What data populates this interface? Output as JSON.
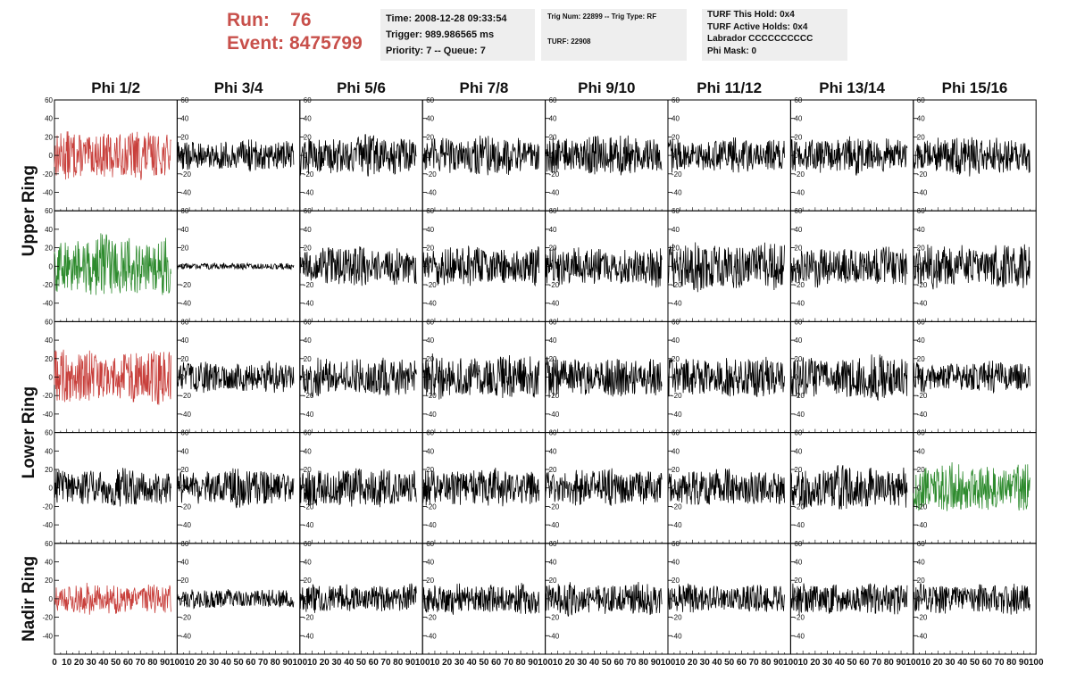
{
  "header": {
    "run_label": "Run:",
    "run_value": "76",
    "event_label": "Event:",
    "event_value": "8475799"
  },
  "info_box_1": {
    "time": "Time: 2008-12-28 09:33:54",
    "trigger": "Trigger: 989.986565 ms",
    "priority": "Priority: 7 -- Queue: 7"
  },
  "info_box_2": {
    "trig": "Trig Num: 22899 -- Trig Type: RF",
    "turf": "TURF: 22908"
  },
  "info_box_3": {
    "this_hold": "TURF This Hold: 0x4",
    "active_holds": "TURF Active Holds: 0x4",
    "labrador": "Labrador CCCCCCCCCC",
    "phi_mask": "Phi Mask: 0"
  },
  "colors": {
    "red_trace": "#c8403c",
    "green_trace": "#2e8b2e",
    "black_trace": "#000000",
    "header_text": "#c8504b"
  },
  "chart_data": {
    "type": "line",
    "columns": [
      "Phi 1/2",
      "Phi 3/4",
      "Phi 5/6",
      "Phi 7/8",
      "Phi 9/10",
      "Phi 11/12",
      "Phi 13/14",
      "Phi 15/16"
    ],
    "row_groups": [
      "Upper Ring",
      "Lower Ring",
      "Nadir Ring"
    ],
    "panel_rows": 5,
    "ylim": [
      -60,
      60
    ],
    "xlim": [
      0,
      100
    ],
    "yticks": [
      -40,
      -20,
      0,
      20,
      40,
      60
    ],
    "xticks": [
      0,
      10,
      20,
      30,
      40,
      50,
      60,
      70,
      80,
      90,
      100
    ],
    "samples_per_trace": 260,
    "trace_x_range": [
      0,
      95
    ],
    "panels": [
      {
        "row": 0,
        "col": 0,
        "color": "red",
        "amplitude": 22
      },
      {
        "row": 0,
        "col": 1,
        "color": "black",
        "amplitude": 14
      },
      {
        "row": 0,
        "col": 2,
        "color": "black",
        "amplitude": 18
      },
      {
        "row": 0,
        "col": 3,
        "color": "black",
        "amplitude": 18
      },
      {
        "row": 0,
        "col": 4,
        "color": "black",
        "amplitude": 18
      },
      {
        "row": 0,
        "col": 5,
        "color": "black",
        "amplitude": 16
      },
      {
        "row": 0,
        "col": 6,
        "color": "black",
        "amplitude": 17
      },
      {
        "row": 0,
        "col": 7,
        "color": "black",
        "amplitude": 18
      },
      {
        "row": 1,
        "col": 0,
        "color": "green",
        "amplitude": 28
      },
      {
        "row": 1,
        "col": 1,
        "color": "black",
        "amplitude": 3
      },
      {
        "row": 1,
        "col": 2,
        "color": "black",
        "amplitude": 18
      },
      {
        "row": 1,
        "col": 3,
        "color": "black",
        "amplitude": 18
      },
      {
        "row": 1,
        "col": 4,
        "color": "black",
        "amplitude": 18
      },
      {
        "row": 1,
        "col": 5,
        "color": "black",
        "amplitude": 22
      },
      {
        "row": 1,
        "col": 6,
        "color": "black",
        "amplitude": 18
      },
      {
        "row": 1,
        "col": 7,
        "color": "black",
        "amplitude": 20
      },
      {
        "row": 2,
        "col": 0,
        "color": "red",
        "amplitude": 24
      },
      {
        "row": 2,
        "col": 1,
        "color": "black",
        "amplitude": 14
      },
      {
        "row": 2,
        "col": 2,
        "color": "black",
        "amplitude": 18
      },
      {
        "row": 2,
        "col": 3,
        "color": "black",
        "amplitude": 20
      },
      {
        "row": 2,
        "col": 4,
        "color": "black",
        "amplitude": 18
      },
      {
        "row": 2,
        "col": 5,
        "color": "black",
        "amplitude": 18
      },
      {
        "row": 2,
        "col": 6,
        "color": "black",
        "amplitude": 20
      },
      {
        "row": 2,
        "col": 7,
        "color": "black",
        "amplitude": 14
      },
      {
        "row": 3,
        "col": 0,
        "color": "black",
        "amplitude": 17
      },
      {
        "row": 3,
        "col": 1,
        "color": "black",
        "amplitude": 17
      },
      {
        "row": 3,
        "col": 2,
        "color": "black",
        "amplitude": 18
      },
      {
        "row": 3,
        "col": 3,
        "color": "black",
        "amplitude": 18
      },
      {
        "row": 3,
        "col": 4,
        "color": "black",
        "amplitude": 17
      },
      {
        "row": 3,
        "col": 5,
        "color": "black",
        "amplitude": 17
      },
      {
        "row": 3,
        "col": 6,
        "color": "black",
        "amplitude": 20
      },
      {
        "row": 3,
        "col": 7,
        "color": "green",
        "amplitude": 22
      },
      {
        "row": 4,
        "col": 0,
        "color": "red",
        "amplitude": 14
      },
      {
        "row": 4,
        "col": 1,
        "color": "black",
        "amplitude": 9
      },
      {
        "row": 4,
        "col": 2,
        "color": "black",
        "amplitude": 13
      },
      {
        "row": 4,
        "col": 3,
        "color": "black",
        "amplitude": 14
      },
      {
        "row": 4,
        "col": 4,
        "color": "black",
        "amplitude": 15
      },
      {
        "row": 4,
        "col": 5,
        "color": "black",
        "amplitude": 13
      },
      {
        "row": 4,
        "col": 6,
        "color": "black",
        "amplitude": 14
      },
      {
        "row": 4,
        "col": 7,
        "color": "black",
        "amplitude": 14
      }
    ]
  }
}
